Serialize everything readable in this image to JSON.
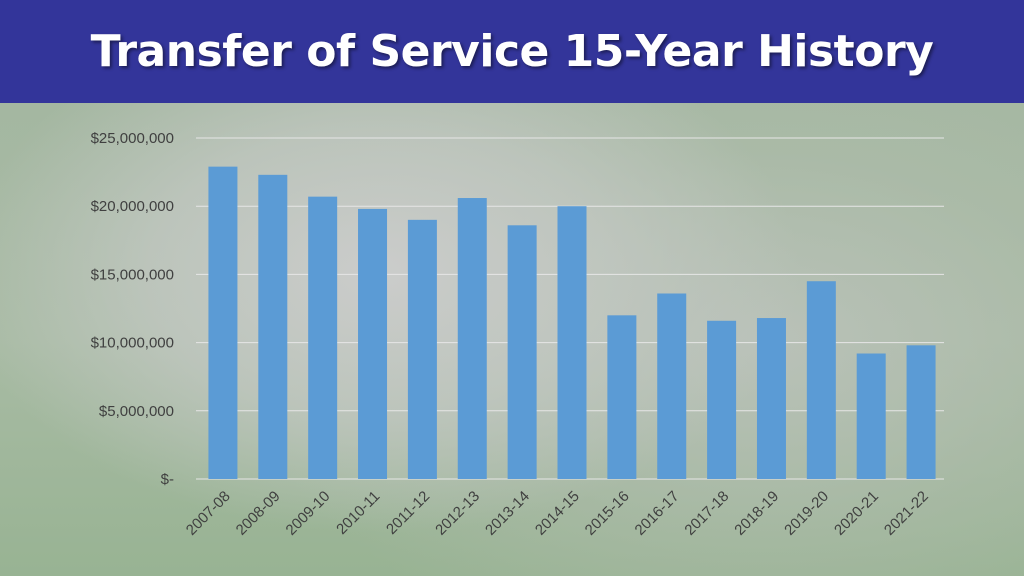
{
  "title": "Transfer of Service 15-Year History",
  "colors": {
    "header": "#33359a",
    "bar": "#5b9bd5",
    "gridline": "#e6e6e6"
  },
  "chart_data": {
    "type": "bar",
    "title": "Transfer of Service 15-Year History",
    "xlabel": "",
    "ylabel": "",
    "ylim": [
      0,
      25000000
    ],
    "grid": true,
    "legend": "none",
    "categories": [
      "2007-08",
      "2008-09",
      "2009-10",
      "2010-11",
      "2011-12",
      "2012-13",
      "2013-14",
      "2014-15",
      "2015-16",
      "2016-17",
      "2017-18",
      "2018-19",
      "2019-20",
      "2020-21",
      "2021-22"
    ],
    "values": [
      22900000,
      22300000,
      20700000,
      19800000,
      19000000,
      20600000,
      18600000,
      20000000,
      12000000,
      13600000,
      11600000,
      11800000,
      14500000,
      9200000,
      9800000
    ],
    "yticks": [
      0,
      5000000,
      10000000,
      15000000,
      20000000,
      25000000
    ],
    "ytick_labels": [
      "$-",
      "$5,000,000",
      "$10,000,000",
      "$15,000,000",
      "$20,000,000",
      "$25,000,000"
    ]
  }
}
